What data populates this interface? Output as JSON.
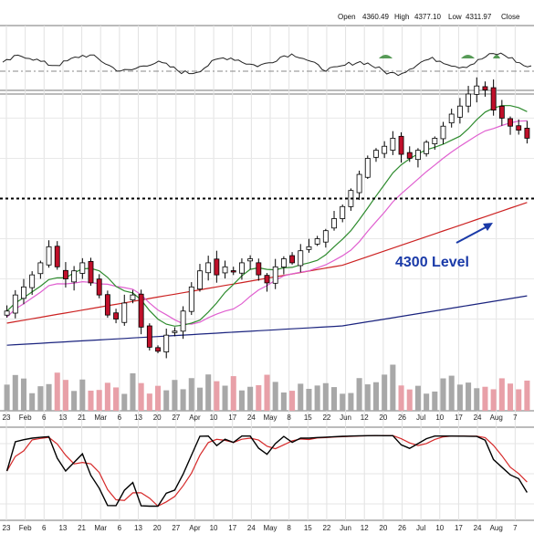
{
  "header": {
    "open_label": "Open",
    "open_value": "4360.49",
    "high_label": "High",
    "high_value": "4377.10",
    "low_label": "Low",
    "low_value": "4311.97",
    "close_label": "Close"
  },
  "annotation": {
    "level_text": "4300 Level",
    "level_value": 4300
  },
  "colors": {
    "up_candle": "#ffffff",
    "down_candle": "#c0102a",
    "candle_outline": "#000000",
    "sma20": "#2e8b2e",
    "ema20_pink": "#e060d0",
    "sma50_red": "#cc2222",
    "sma200_navy": "#1a237e",
    "volume_up": "#a8a8a8",
    "volume_down": "#e8a0a8",
    "stoch_k": "#000000",
    "stoch_d": "#d62a2a",
    "annotation_text": "#1a3aa8",
    "osc_fill": "#3a8a3a"
  },
  "axis": {
    "date_labels": [
      "23",
      "Feb",
      "6",
      "13",
      "21",
      "Mar",
      "6",
      "13",
      "20",
      "27",
      "Apr",
      "10",
      "17",
      "24",
      "May",
      "8",
      "15",
      "22",
      "Jun",
      "12",
      "20",
      "26",
      "Jul",
      "10",
      "17",
      "24",
      "Aug",
      "7"
    ]
  },
  "chart_data": {
    "type": "line",
    "x_axis": "trading days, late Jan to early Aug",
    "price_level_line": 4300,
    "series": [
      {
        "values": [
          4020,
          4060,
          4080,
          4110,
          4140,
          4180,
          4130,
          4100,
          4120,
          4140,
          4090,
          4060,
          4010,
          4000,
          4040,
          4060,
          3980,
          3930,
          3920,
          3960,
          3970,
          4020,
          4080,
          4120,
          4140,
          4110,
          4130,
          4120,
          4140,
          4150,
          4110,
          4090,
          4130,
          4150,
          4140,
          4170,
          4180,
          4200,
          4220,
          4250,
          4280,
          4320,
          4360,
          4400,
          4420,
          4430,
          4450,
          4410,
          4400,
          4420,
          4440,
          4450,
          4480,
          4510,
          4530,
          4560,
          4580,
          4570,
          4520,
          4500,
          4480,
          4470,
          4450
        ]
      }
    ]
  }
}
